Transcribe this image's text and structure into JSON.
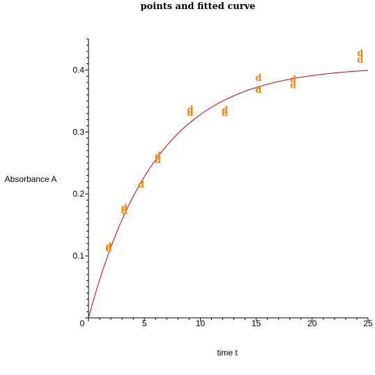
{
  "chart_data": {
    "type": "scatter",
    "title": "points and fitted curve",
    "xlabel": "time t",
    "ylabel": "Absorbance A",
    "xlim": [
      0,
      25
    ],
    "ylim": [
      0,
      0.45
    ],
    "x_ticks": [
      0,
      5,
      10,
      15,
      20,
      25
    ],
    "y_ticks": [
      0,
      0.1,
      0.2,
      0.3,
      0.4
    ],
    "x_tick_labels": [
      "0",
      "5",
      "10",
      "15",
      "20",
      "25"
    ],
    "y_tick_labels": [
      "",
      "0.1",
      "0.2",
      "0.3",
      "0.4"
    ],
    "grid": false,
    "point_symbol": "d",
    "point_color": "#ff8000",
    "curve_color": "#cc0000",
    "points": [
      {
        "x": 1.8,
        "y": 0.115
      },
      {
        "x": 1.8,
        "y": 0.112
      },
      {
        "x": 3.2,
        "y": 0.177
      },
      {
        "x": 3.2,
        "y": 0.172
      },
      {
        "x": 4.7,
        "y": 0.215
      },
      {
        "x": 6.2,
        "y": 0.261
      },
      {
        "x": 6.2,
        "y": 0.254
      },
      {
        "x": 9.1,
        "y": 0.336
      },
      {
        "x": 9.1,
        "y": 0.33
      },
      {
        "x": 12.2,
        "y": 0.335
      },
      {
        "x": 12.2,
        "y": 0.33
      },
      {
        "x": 15.2,
        "y": 0.387
      },
      {
        "x": 15.2,
        "y": 0.368
      },
      {
        "x": 18.3,
        "y": 0.385
      },
      {
        "x": 18.3,
        "y": 0.375
      },
      {
        "x": 24.3,
        "y": 0.427
      },
      {
        "x": 24.3,
        "y": 0.416
      }
    ],
    "fit": {
      "model": "A = Amax * (1 - exp(-k t))",
      "Amax": 0.406,
      "k": 0.165
    }
  }
}
